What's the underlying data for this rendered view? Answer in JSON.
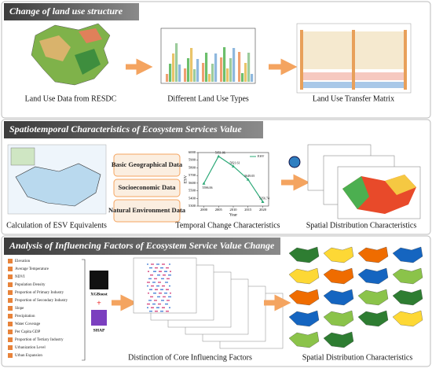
{
  "sections": [
    {
      "title": "Change of land use structure",
      "items": [
        "Land Use Data from RESDC",
        "Different Land Use Types",
        "Land Use Transfer Matrix"
      ]
    },
    {
      "title": "Spatiotemporal Characteristics of Ecosystem Services Value",
      "items": [
        "Calculation of ESV Equivalents",
        "Temporal Change Characteristics",
        "Spatial Distribution Characteristics"
      ]
    },
    {
      "title": "Analysis of Influencing Factors of Ecosystem Service Value Change",
      "items": [
        "Distinction of Core Influencing Factors",
        "Spatial Distribution Characteristics"
      ]
    }
  ],
  "data_sources": [
    "Basic Geographical Data",
    "Socioeconomic Data",
    "Natural Environment Data"
  ],
  "factors": [
    "Elevation",
    "Average Temperature",
    "NDVI",
    "Population Density",
    "Proportion of Primary Industry",
    "Proportion of Secondary Industry",
    "Slope",
    "Precipitation",
    "Water Coverage",
    "Per Capita GDP",
    "Proportion of Tertiary Industry",
    "Urbanization Level",
    "Urban Expansion"
  ],
  "models": [
    "XGBoost",
    "SHAP"
  ],
  "chart_data": {
    "type": "line",
    "legend": "ESV",
    "x_label": "Year",
    "y_label": "ESV",
    "x": [
      2000,
      2005,
      2010,
      2015,
      2020
    ],
    "values": [
      5596.06,
      5951.06,
      5821.61,
      5649.05,
      5356.74
    ],
    "color": "#2aa876",
    "xlim": [
      1998,
      2022
    ],
    "xticks": [
      2000,
      2005,
      2010,
      2015,
      2020
    ],
    "ylim": [
      5300,
      6000
    ],
    "yticks": [
      5300,
      5400,
      5500,
      5600,
      5700,
      5800,
      5900,
      6000
    ]
  }
}
